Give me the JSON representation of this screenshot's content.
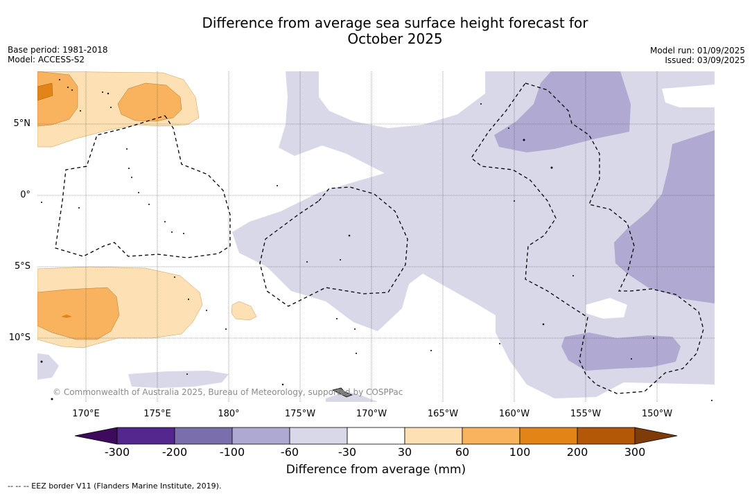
{
  "title_line1": "Difference from average sea surface height forecast for",
  "title_line2": "October 2025",
  "meta_left": {
    "base_period": "Base period: 1981-2018",
    "model": "Model: ACCESS-S2"
  },
  "meta_right": {
    "model_run": "Model run: 01/09/2025",
    "issued": "Issued: 03/09/2025"
  },
  "lat_labels": [
    "5°N",
    "0°",
    "5°S",
    "10°S"
  ],
  "lon_labels": [
    "170°E",
    "175°E",
    "180°",
    "175°W",
    "170°W",
    "165°W",
    "160°W",
    "155°W",
    "150°W"
  ],
  "copyright": "© Commonwealth of Australia 2025, Bureau of Meteorology, supported by COSPPac",
  "colorbar": {
    "ticks": [
      "-300",
      "-200",
      "-100",
      "-60",
      "-30",
      "30",
      "60",
      "100",
      "200",
      "300"
    ],
    "colors": [
      "#3d0a5e",
      "#54278f",
      "#7b6eac",
      "#aea9d2",
      "#d8d8e9",
      "#ffffff",
      "#fde0b4",
      "#f9b35e",
      "#e28516",
      "#b35807",
      "#7f3b08"
    ],
    "label": "Difference from average (mm)"
  },
  "footer": "--  --  -- EEZ border V11 (Flanders Marine Institute, 2019).",
  "map_colors": {
    "lav_light": "#d8d8e9",
    "lav_mid": "#b0a9d1",
    "or_light": "#fde0b4",
    "or_mid": "#f9b35e",
    "or_dark": "#e28516"
  }
}
